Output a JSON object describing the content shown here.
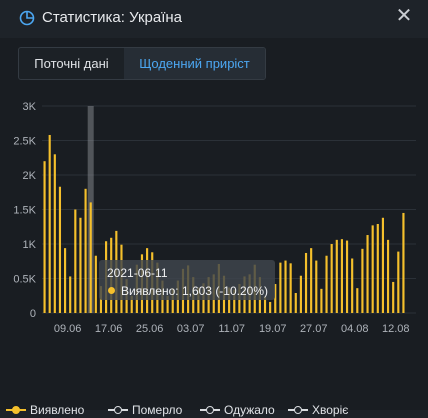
{
  "window": {
    "title": "Статистика: Україна",
    "close_glyph": "✕",
    "title_icon": "pie-chart-icon"
  },
  "tabs": [
    {
      "label": "Поточні дані",
      "active": false
    },
    {
      "label": "Щоденний приріст",
      "active": true
    }
  ],
  "colors": {
    "accent": "#4ca7f2",
    "bar": "#f5c02c",
    "confirmed": "#f5c02c"
  },
  "tooltip": {
    "date": "2021-06-11",
    "text": "Виявлено: 1,603 (-10.20%)"
  },
  "legend": [
    {
      "label": "Виявлено",
      "color": "#f5c02c"
    },
    {
      "label": "Померло",
      "color": "#d9dce0"
    },
    {
      "label": "Одужало",
      "color": "#d9dce0"
    },
    {
      "label": "Хворіє",
      "color": "#d9dce0"
    }
  ],
  "chart_data": {
    "type": "bar",
    "y_tick_labels": [
      "0",
      "0.5K",
      "1K",
      "1.5K",
      "2K",
      "2.5K",
      "3K"
    ],
    "x_tick_labels": [
      "09.06",
      "17.06",
      "25.06",
      "03.07",
      "11.07",
      "19.07",
      "27.07",
      "04.08",
      "12.08"
    ],
    "ylim": [
      0,
      3000
    ],
    "grid": true,
    "highlighted_index": 9,
    "series": [
      {
        "name": "Виявлено",
        "values": [
          2200,
          2580,
          2300,
          1830,
          940,
          530,
          1500,
          1380,
          1800,
          1603,
          830,
          390,
          1040,
          1090,
          1190,
          990,
          490,
          250,
          700,
          850,
          940,
          880,
          730,
          470,
          250,
          360,
          470,
          640,
          690,
          520,
          370,
          430,
          520,
          560,
          710,
          540,
          370,
          340,
          420,
          530,
          560,
          700,
          520,
          240,
          160,
          420,
          730,
          760,
          720,
          290,
          540,
          870,
          940,
          760,
          350,
          830,
          1000,
          1060,
          1070,
          1050,
          790,
          360,
          930,
          1130,
          1270,
          1290,
          1380,
          1060,
          450,
          890,
          1450
        ]
      }
    ]
  }
}
